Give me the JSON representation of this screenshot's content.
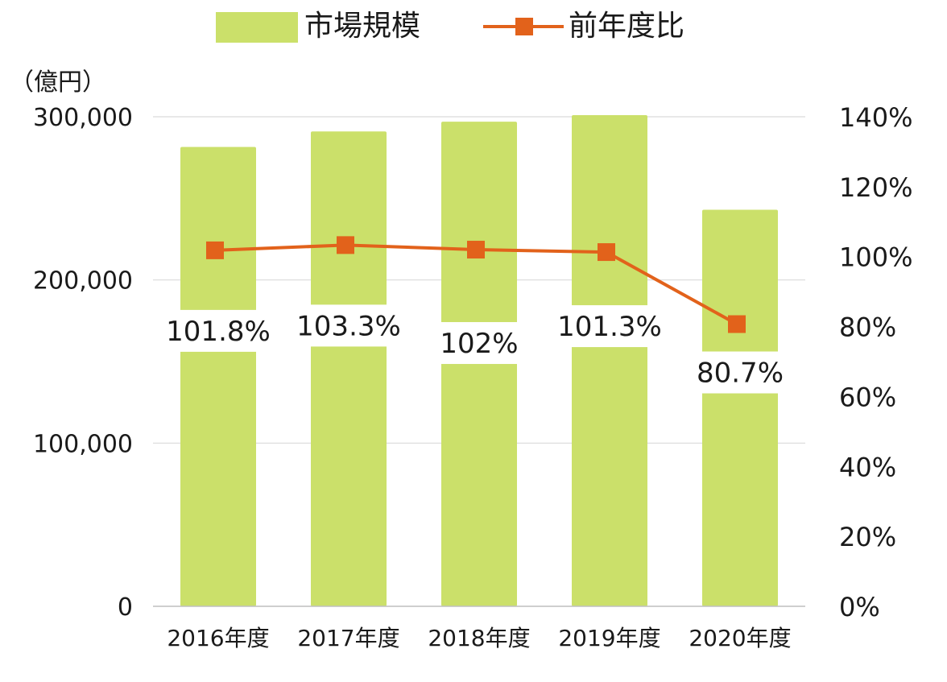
{
  "chart_data": {
    "type": "bar",
    "categories": [
      "2016年度",
      "2017年度",
      "2018年度",
      "2019年度",
      "2020年度"
    ],
    "series": [
      {
        "name": "市場規模",
        "type": "bar",
        "axis": "left",
        "values": [
          281500,
          291000,
          297000,
          301000,
          243000
        ],
        "color": "#cbe06a"
      },
      {
        "name": "前年度比",
        "type": "line",
        "axis": "right",
        "values": [
          101.8,
          103.3,
          102,
          101.3,
          80.7
        ],
        "labels": [
          "101.8%",
          "103.3%",
          "102%",
          "101.3%",
          "80.7%"
        ],
        "color": "#e2621b"
      }
    ],
    "y_left": {
      "label": "（億円）",
      "ylim": [
        0,
        300000
      ],
      "ticks": [
        "0",
        "100,000",
        "200,000",
        "300,000"
      ]
    },
    "y_right": {
      "ylim": [
        0,
        140
      ],
      "ticks": [
        "0%",
        "20%",
        "40%",
        "60%",
        "80%",
        "100%",
        "120%",
        "140%"
      ]
    },
    "legend": {
      "position": "top",
      "items": [
        "市場規模",
        "前年度比"
      ]
    },
    "grid": true
  }
}
